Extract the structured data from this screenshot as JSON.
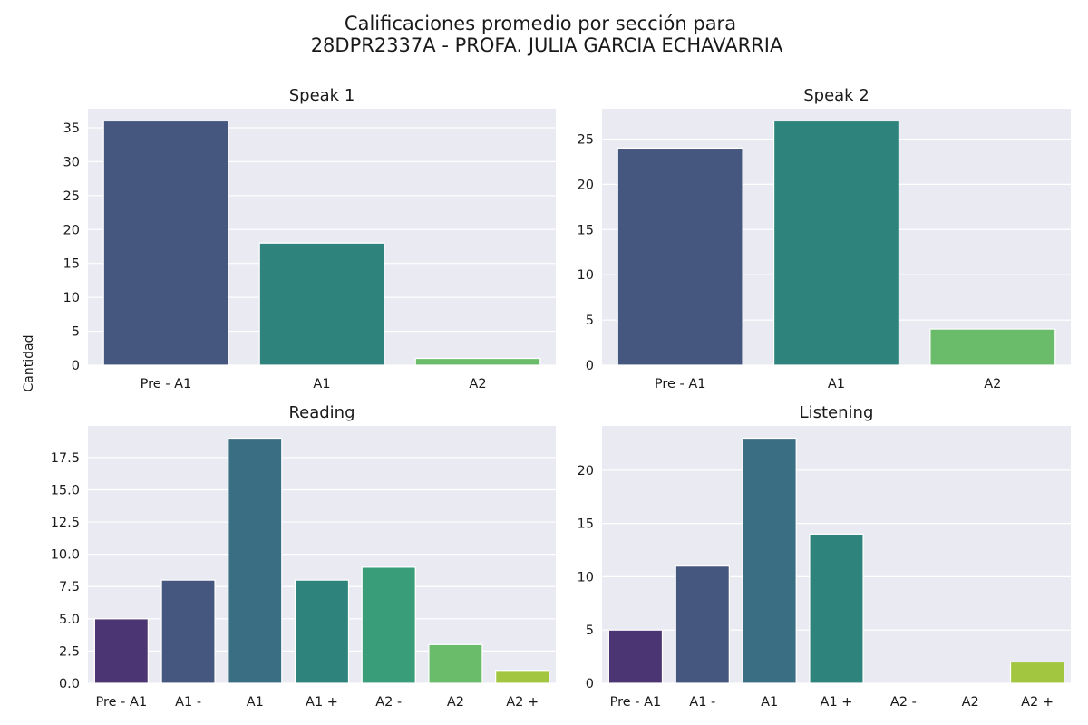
{
  "figure": {
    "title_line1": "Calificaciones promedio por sección para",
    "title_line2": "28DPR2337A - PROFA. JULIA GARCIA ECHAVARRIA",
    "shared_ylabel": "Cantidad"
  },
  "colors": {
    "panel_bg": "#EAEAF2",
    "grid": "#FFFFFF"
  },
  "chart_data": [
    {
      "type": "bar",
      "title": "Speak 1",
      "categories": [
        "Pre - A1",
        "A1",
        "A2"
      ],
      "values": [
        36,
        18,
        1
      ],
      "colors": [
        "#46577F",
        "#2E847D",
        "#6ABC6B"
      ],
      "ylim": [
        0,
        37.8
      ],
      "yticks": [
        0,
        5,
        10,
        15,
        20,
        25,
        30,
        35
      ],
      "ytick_labels": [
        "0",
        "5",
        "10",
        "15",
        "20",
        "25",
        "30",
        "35"
      ],
      "ylabel": "Cantidad",
      "xlabel": "",
      "grid": true
    },
    {
      "type": "bar",
      "title": "Speak 2",
      "categories": [
        "Pre - A1",
        "A1",
        "A2"
      ],
      "values": [
        24,
        27,
        4
      ],
      "colors": [
        "#46577F",
        "#2E847D",
        "#6ABC6B"
      ],
      "ylim": [
        0,
        28.35
      ],
      "yticks": [
        0,
        5,
        10,
        15,
        20,
        25
      ],
      "ytick_labels": [
        "0",
        "5",
        "10",
        "15",
        "20",
        "25"
      ],
      "ylabel": "",
      "xlabel": "",
      "grid": true
    },
    {
      "type": "bar",
      "title": "Reading",
      "categories": [
        "Pre - A1",
        "A1 -",
        "A1",
        "A1 +",
        "A2 -",
        "A2",
        "A2 +"
      ],
      "values": [
        5,
        8,
        19,
        8,
        9,
        3,
        1
      ],
      "colors": [
        "#4B3572",
        "#46577F",
        "#3A6E82",
        "#2E847D",
        "#3A9D7A",
        "#6ABC6B",
        "#A3C641"
      ],
      "ylim": [
        0,
        19.95
      ],
      "yticks": [
        0,
        2.5,
        5,
        7.5,
        10,
        12.5,
        15,
        17.5
      ],
      "ytick_labels": [
        "0.0",
        "2.5",
        "5.0",
        "7.5",
        "10.0",
        "12.5",
        "15.0",
        "17.5"
      ],
      "ylabel": "",
      "xlabel": "",
      "grid": true
    },
    {
      "type": "bar",
      "title": "Listening",
      "categories": [
        "Pre - A1",
        "A1 -",
        "A1",
        "A1 +",
        "A2 -",
        "A2",
        "A2 +"
      ],
      "values": [
        5,
        11,
        23,
        14,
        0,
        0,
        2
      ],
      "colors": [
        "#4B3572",
        "#46577F",
        "#3A6E82",
        "#2E847D",
        "#3A9D7A",
        "#6ABC6B",
        "#A3C641"
      ],
      "ylim": [
        0,
        24.15
      ],
      "yticks": [
        0,
        5,
        10,
        15,
        20
      ],
      "ytick_labels": [
        "0",
        "5",
        "10",
        "15",
        "20"
      ],
      "ylabel": "",
      "xlabel": "",
      "grid": true
    }
  ]
}
